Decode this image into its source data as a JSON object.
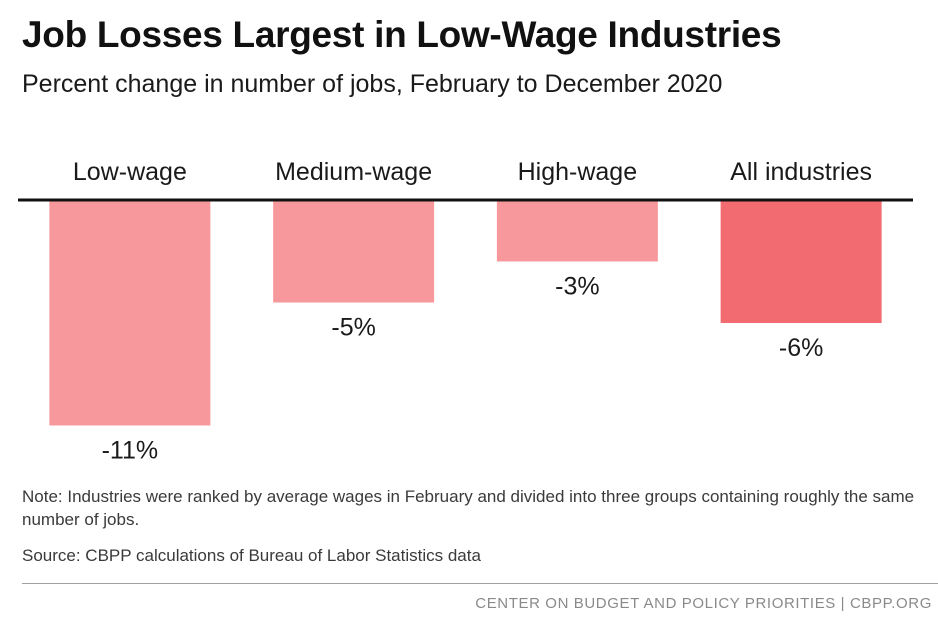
{
  "title": "Job Losses Largest in Low-Wage Industries",
  "subtitle": "Percent change in number of jobs, February to December 2020",
  "note": "Note: Industries were ranked by average wages in February and divided into three groups containing roughly the same number of jobs.",
  "source": "Source: CBPP calculations of Bureau of Labor Statistics data",
  "footer": "CENTER ON BUDGET AND POLICY PRIORITIES | CBPP.ORG",
  "colors": {
    "bar": "#f7999c",
    "bar_highlight": "#f26b70",
    "axis": "#111111"
  },
  "chart_data": {
    "type": "bar",
    "title": "Job Losses Largest in Low-Wage Industries",
    "ylabel": "Percent change in number of jobs",
    "categories": [
      "Low-wage",
      "Medium-wage",
      "High-wage",
      "All industries"
    ],
    "values": [
      -11,
      -5,
      -3,
      -6
    ],
    "data_labels": [
      "-11%",
      "-5%",
      "-3%",
      "-6%"
    ],
    "highlight": [
      false,
      false,
      false,
      true
    ],
    "ylim": [
      -11,
      0
    ]
  }
}
